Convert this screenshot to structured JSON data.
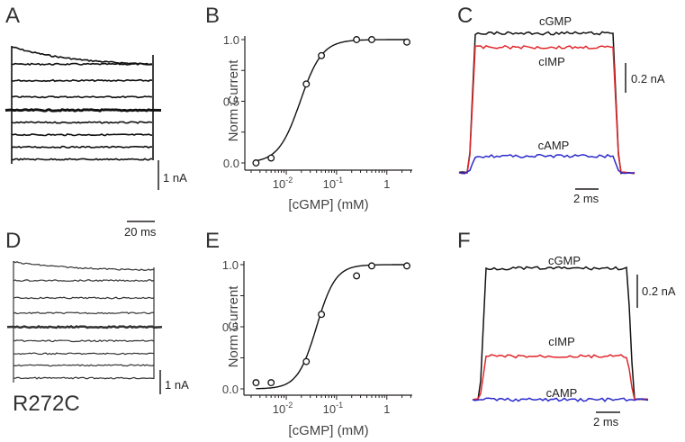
{
  "figure": {
    "panel_labels": {
      "A": "A",
      "B": "B",
      "C": "C",
      "D": "D",
      "E": "E",
      "F": "F"
    },
    "mutant_label": "R272C",
    "colors": {
      "cGMP": "#111111",
      "cIMP": "#e0262a",
      "cAMP": "#2a2acc",
      "axis": "#231f20"
    }
  },
  "chart_data": [
    {
      "panel": "A",
      "type": "line",
      "title": "",
      "description": "Current families (voltage steps), wild type",
      "n_traces": 9,
      "trace_levels_relative": [
        1.0,
        0.83,
        0.67,
        0.51,
        0.38,
        0.26,
        0.14,
        0.02,
        -0.1
      ],
      "first_trace_decay_to": 0.83,
      "scale_bars": {
        "current": "1 nA",
        "time": "20 ms"
      }
    },
    {
      "panel": "B",
      "type": "scatter",
      "title": "",
      "xlabel": "[cGMP] (mM)",
      "ylabel": "Norm Current",
      "xscale": "log",
      "xlim": [
        0.0015,
        3.2
      ],
      "ylim": [
        0,
        1
      ],
      "xticks": [
        {
          "value": 0.01,
          "base": "10",
          "exp": "-2"
        },
        {
          "value": 0.1,
          "base": "10",
          "exp": "-1"
        },
        {
          "value": 1,
          "base": "1",
          "exp": ""
        }
      ],
      "yticks": [
        "0.0",
        "0.5",
        "1.0"
      ],
      "points": [
        {
          "x": 0.0025,
          "y": 0.0
        },
        {
          "x": 0.005,
          "y": 0.04
        },
        {
          "x": 0.025,
          "y": 0.64
        },
        {
          "x": 0.05,
          "y": 0.87
        },
        {
          "x": 0.25,
          "y": 1.0
        },
        {
          "x": 0.5,
          "y": 1.0
        },
        {
          "x": 2.5,
          "y": 0.98
        }
      ],
      "fit": {
        "model": "hill",
        "K_half": 0.019,
        "n": 2.0
      }
    },
    {
      "panel": "C",
      "type": "line",
      "description": "Current responses to saturating cyclic nucleotides, wild type",
      "series": [
        {
          "name": "cGMP",
          "level": 1.0
        },
        {
          "name": "cIMP",
          "level": 0.9
        },
        {
          "name": "cAMP",
          "level": 0.12
        }
      ],
      "scale_bars": {
        "current": "0.2 nA",
        "time": "2 ms"
      }
    },
    {
      "panel": "D",
      "type": "line",
      "description": "Current families (voltage steps), R272C mutant",
      "n_traces": 9,
      "trace_levels_relative": [
        1.0,
        0.84,
        0.69,
        0.56,
        0.44,
        0.32,
        0.21,
        0.11,
        0.0
      ],
      "first_trace_decay_to": 0.93,
      "scale_bars": {
        "current": "1 nA"
      }
    },
    {
      "panel": "E",
      "type": "scatter",
      "title": "",
      "xlabel": "[cGMP] (mM)",
      "ylabel": "Norm Current",
      "xscale": "log",
      "xlim": [
        0.0015,
        3.2
      ],
      "ylim": [
        0,
        1
      ],
      "xticks": [
        {
          "value": 0.01,
          "base": "10",
          "exp": "-2"
        },
        {
          "value": 0.1,
          "base": "10",
          "exp": "-1"
        },
        {
          "value": 1,
          "base": "1",
          "exp": ""
        }
      ],
      "yticks": [
        "0.0",
        "0.5",
        "1.0"
      ],
      "points": [
        {
          "x": 0.0025,
          "y": 0.05
        },
        {
          "x": 0.005,
          "y": 0.05
        },
        {
          "x": 0.025,
          "y": 0.22
        },
        {
          "x": 0.05,
          "y": 0.6
        },
        {
          "x": 0.25,
          "y": 0.91
        },
        {
          "x": 0.5,
          "y": 0.99
        },
        {
          "x": 2.5,
          "y": 0.99
        }
      ],
      "fit": {
        "model": "hill",
        "K_half": 0.04,
        "n": 2.3
      }
    },
    {
      "panel": "F",
      "type": "line",
      "description": "Current responses to saturating cyclic nucleotides, R272C",
      "series": [
        {
          "name": "cGMP",
          "level": 1.0
        },
        {
          "name": "cIMP",
          "level": 0.33
        },
        {
          "name": "cAMP",
          "level": 0.0
        }
      ],
      "scale_bars": {
        "current": "0.2 nA",
        "time": "2 ms"
      }
    }
  ]
}
